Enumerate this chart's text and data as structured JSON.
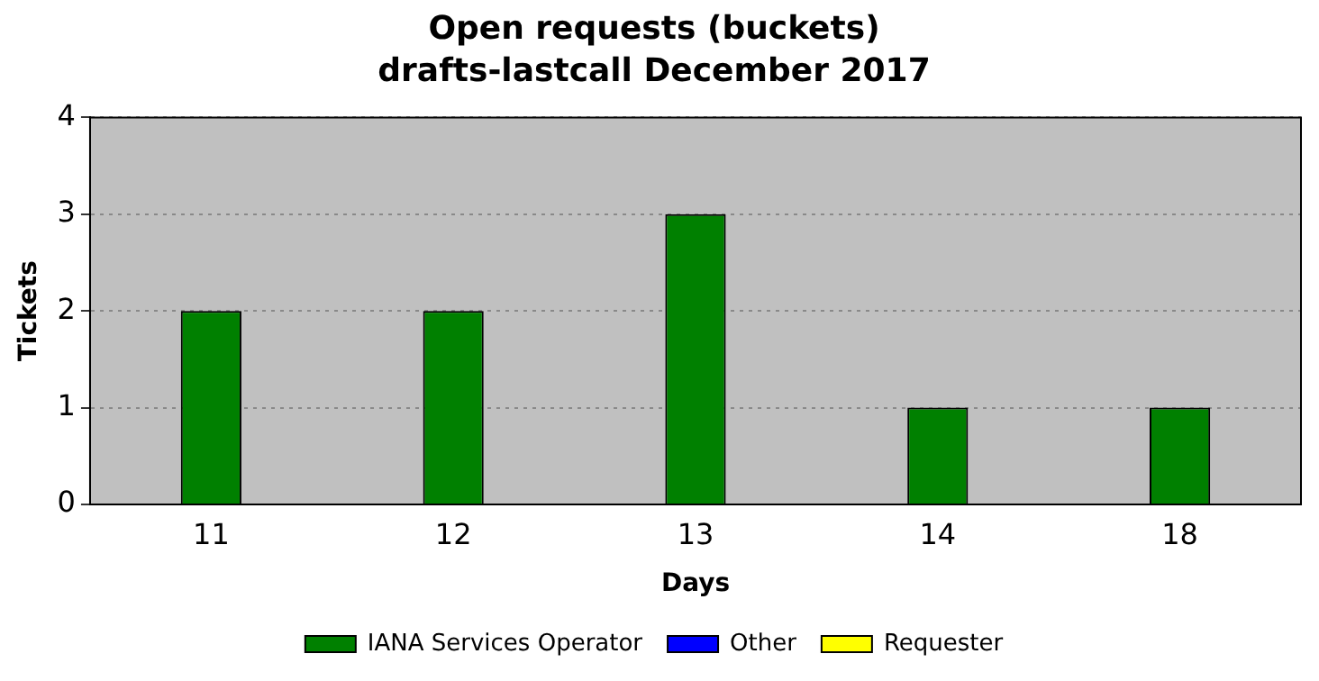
{
  "chart_data": {
    "type": "bar",
    "title": "Open requests (buckets)",
    "subtitle": "drafts-lastcall December 2017",
    "xlabel": "Days",
    "ylabel": "Tickets",
    "categories": [
      "11",
      "12",
      "13",
      "14",
      "18"
    ],
    "series": [
      {
        "name": "IANA Services Operator",
        "color": "#008000",
        "values": [
          2,
          2,
          3,
          1,
          1
        ]
      },
      {
        "name": "Other",
        "color": "#0000ff",
        "values": [
          0,
          0,
          0,
          0,
          0
        ]
      },
      {
        "name": "Requester",
        "color": "#ffff00",
        "values": [
          0,
          0,
          0,
          0,
          0
        ]
      }
    ],
    "stacked": true,
    "ylim": [
      0,
      4
    ],
    "yticks": [
      0,
      1,
      2,
      3,
      4
    ],
    "grid": "y",
    "legend": "bottom"
  }
}
